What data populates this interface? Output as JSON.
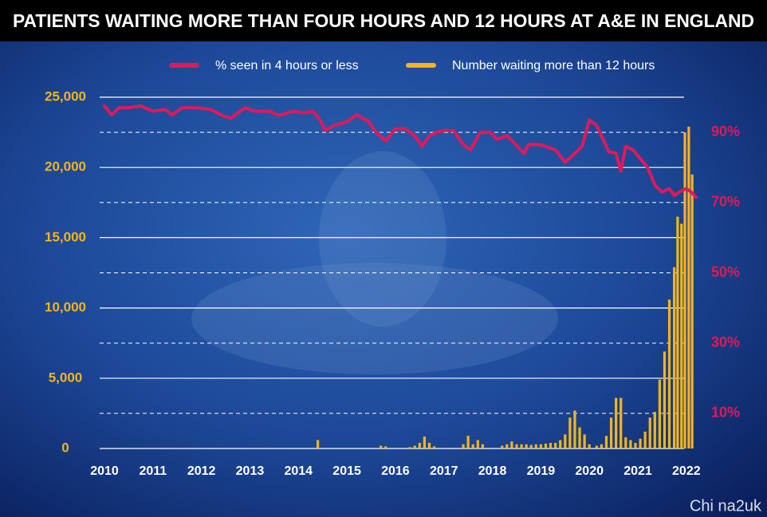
{
  "chart_data": {
    "type": "bar-line",
    "title": "PATIENTS WAITING MORE THAN FOUR HOURS AND 12 HOURS AT A&E IN ENGLAND",
    "watermark": "Chi na2uk",
    "xlim": [
      2010,
      2022.2
    ],
    "xticks": [
      2010,
      2011,
      2012,
      2013,
      2014,
      2015,
      2016,
      2017,
      2018,
      2019,
      2020,
      2021,
      2022
    ],
    "ylim": [
      0,
      25000
    ],
    "yticks": [
      0,
      {
        "value": 5000,
        "label": "5,000"
      },
      {
        "value": 10000,
        "label": "10,000"
      },
      {
        "value": 15000,
        "label": "15,000"
      },
      {
        "value": 20000,
        "label": "20,000"
      },
      {
        "value": 25000,
        "label": "25,000"
      }
    ],
    "y2lim": [
      0,
      100
    ],
    "y2ticks": [
      {
        "value": 10,
        "label": "10%"
      },
      {
        "value": 30,
        "label": "30%"
      },
      {
        "value": 50,
        "label": "50%"
      },
      {
        "value": 70,
        "label": "70%"
      },
      {
        "value": 90,
        "label": "90%"
      }
    ],
    "grid": true,
    "legend": "top",
    "series": [
      {
        "name": "% seen in 4 hours or less",
        "type": "line",
        "axis": "y2",
        "color": "#e0195a",
        "x": [
          2010.0,
          2010.15,
          2010.3,
          2010.5,
          2010.75,
          2011.0,
          2011.25,
          2011.4,
          2011.6,
          2011.9,
          2012.2,
          2012.4,
          2012.6,
          2012.9,
          2013.1,
          2013.4,
          2013.6,
          2013.9,
          2014.1,
          2014.3,
          2014.45,
          2014.55,
          2014.75,
          2015.0,
          2015.2,
          2015.45,
          2015.6,
          2015.8,
          2016.0,
          2016.2,
          2016.4,
          2016.55,
          2016.7,
          2016.85,
          2017.0,
          2017.2,
          2017.4,
          2017.55,
          2017.75,
          2017.95,
          2018.1,
          2018.3,
          2018.45,
          2018.65,
          2018.75,
          2018.95,
          2019.1,
          2019.3,
          2019.5,
          2019.7,
          2019.85,
          2020.0,
          2020.15,
          2020.25,
          2020.4,
          2020.55,
          2020.65,
          2020.75,
          2020.9,
          2021.05,
          2021.2,
          2021.35,
          2021.5,
          2021.65,
          2021.75,
          2021.85,
          2022.0,
          2022.1,
          2022.2
        ],
        "values": [
          97.5,
          95,
          97,
          97,
          97.5,
          96,
          96.5,
          95,
          97,
          97,
          96.5,
          95,
          94,
          97,
          96,
          96,
          94.8,
          96,
          95.5,
          96,
          93.5,
          90.5,
          92,
          93,
          95,
          93,
          90,
          87.5,
          91,
          91,
          89,
          86,
          89,
          90,
          90.5,
          90.5,
          86.5,
          85,
          90,
          90,
          88,
          89,
          87,
          84,
          86.5,
          86.5,
          86,
          85,
          81.5,
          84,
          86,
          93.5,
          92,
          89,
          84.5,
          84,
          79,
          86,
          85,
          82.5,
          80,
          75,
          73,
          74,
          72,
          73,
          74,
          73,
          71.5
        ]
      },
      {
        "name": "Number waiting more than 12 hours",
        "type": "bar",
        "axis": "y",
        "color": "#f2b51c",
        "x": [
          2014.4,
          2015.7,
          2015.8,
          2016.3,
          2016.4,
          2016.5,
          2016.6,
          2016.7,
          2016.8,
          2017.4,
          2017.5,
          2017.6,
          2017.7,
          2017.8,
          2018.2,
          2018.3,
          2018.4,
          2018.5,
          2018.6,
          2018.7,
          2018.8,
          2018.9,
          2019.0,
          2019.1,
          2019.2,
          2019.3,
          2019.4,
          2019.5,
          2019.6,
          2019.7,
          2019.8,
          2019.9,
          2020.0,
          2020.15,
          2020.25,
          2020.35,
          2020.45,
          2020.55,
          2020.65,
          2020.75,
          2020.85,
          2020.95,
          2021.05,
          2021.15,
          2021.25,
          2021.35,
          2021.45,
          2021.55,
          2021.65,
          2021.75,
          2021.82,
          2021.9,
          2021.97,
          2022.05,
          2022.12
        ],
        "values": [
          600,
          200,
          150,
          100,
          200,
          400,
          850,
          400,
          150,
          300,
          900,
          300,
          600,
          300,
          200,
          300,
          500,
          300,
          300,
          300,
          250,
          300,
          300,
          350,
          400,
          400,
          600,
          1000,
          2200,
          2700,
          1500,
          1000,
          300,
          200,
          300,
          900,
          2200,
          3600,
          3600,
          800,
          600,
          400,
          700,
          1200,
          2200,
          2600,
          4900,
          6900,
          10600,
          12900,
          16500,
          16000,
          22500,
          22900,
          19500
        ]
      }
    ]
  }
}
